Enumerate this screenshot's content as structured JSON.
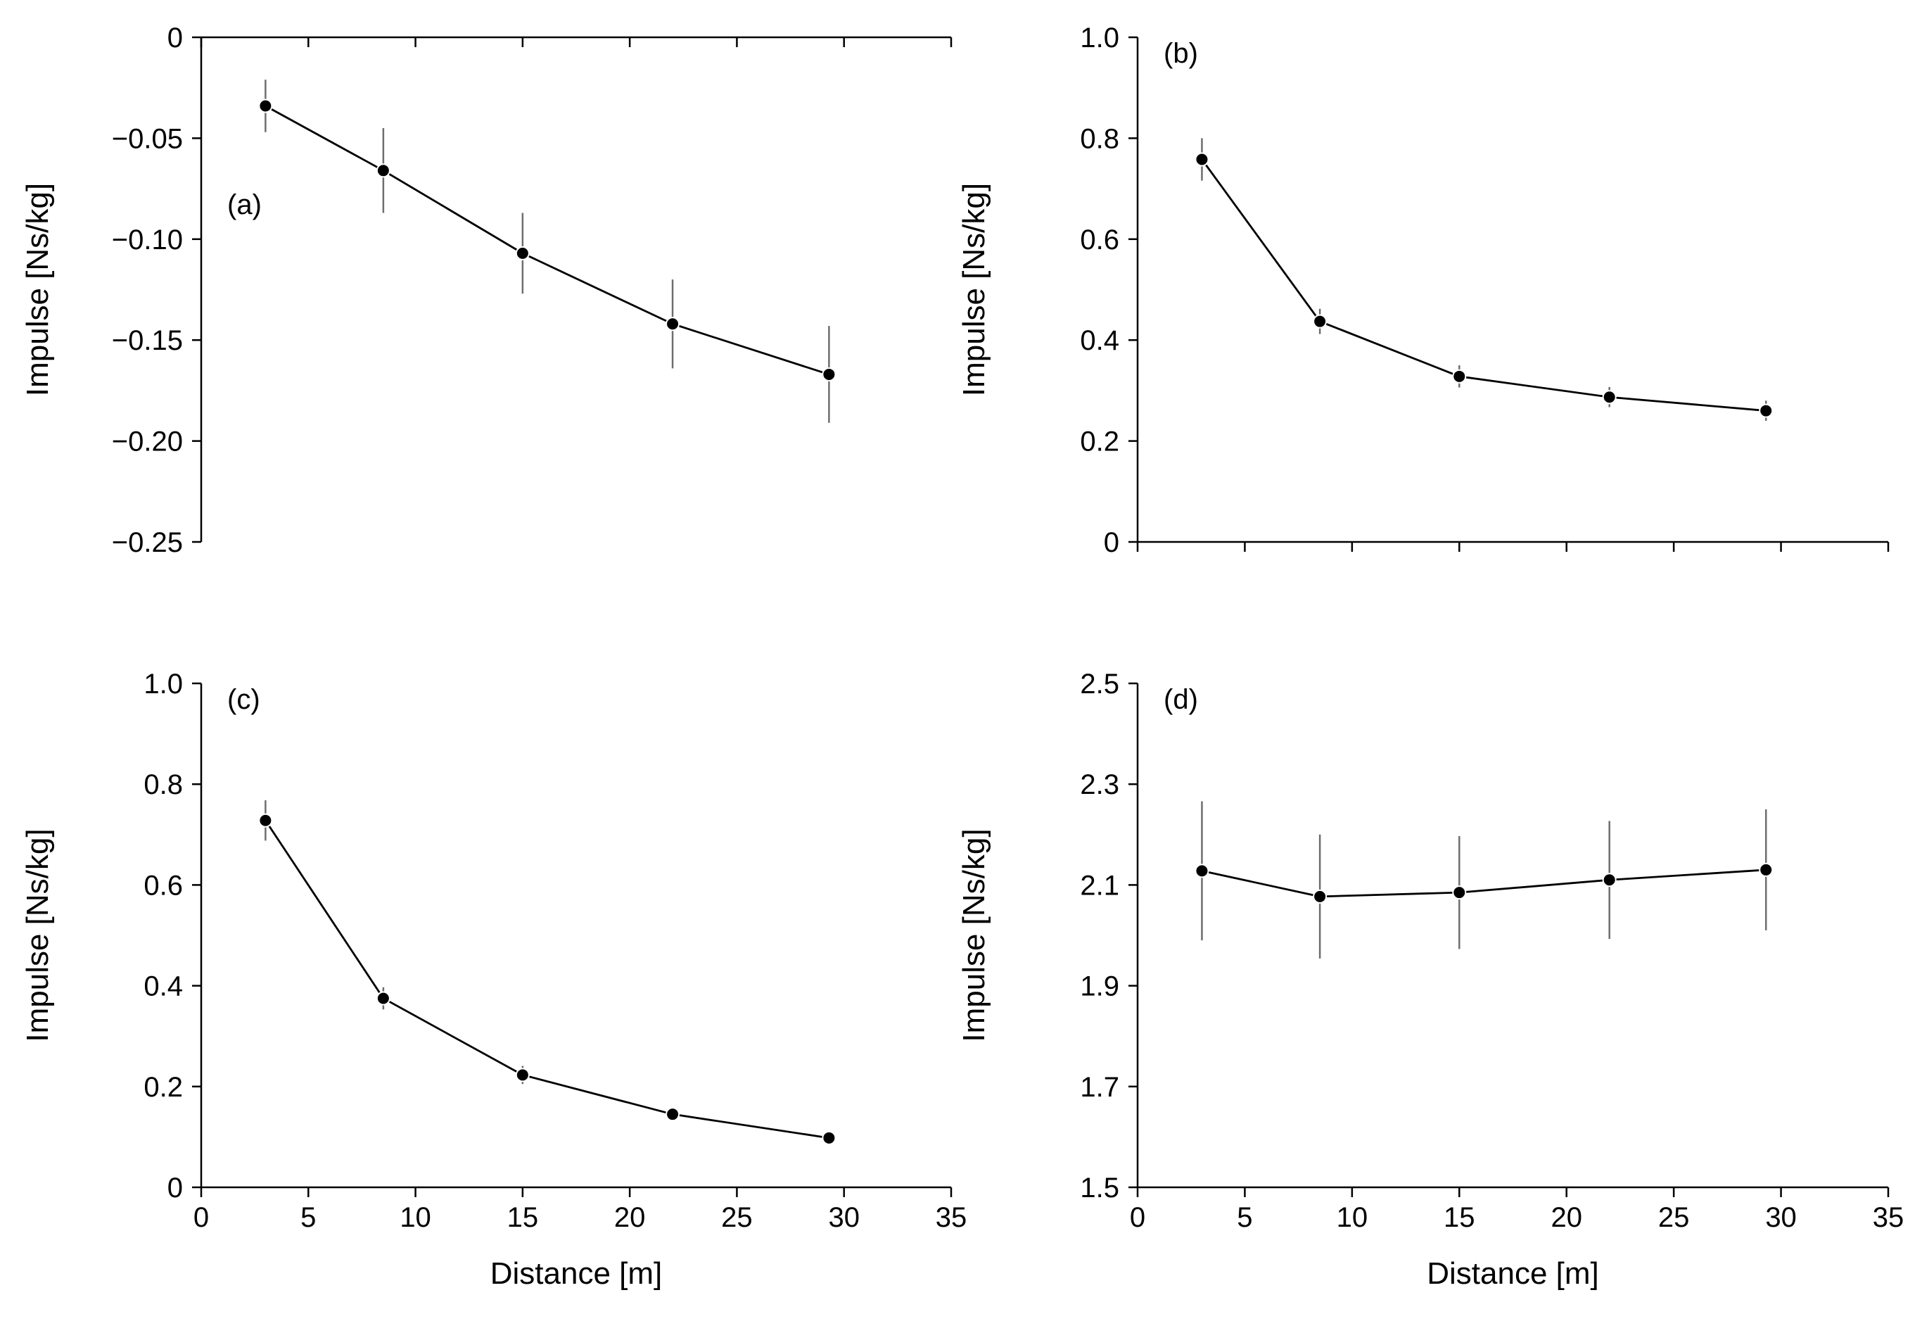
{
  "chart_data": [
    {
      "type": "line",
      "panel_label": "(a)",
      "xlabel": "",
      "ylabel": "Impulse [Ns/kg]",
      "xlim": [
        0,
        35
      ],
      "ylim": [
        -0.25,
        0
      ],
      "xticks": [
        0,
        5,
        10,
        15,
        20,
        25,
        30,
        35
      ],
      "xtick_labels": [],
      "yticks": [
        0,
        -0.05,
        -0.1,
        -0.15,
        -0.2,
        -0.25
      ],
      "ytick_labels": [
        "0",
        "−0.05",
        "−0.10",
        "−0.15",
        "−0.20",
        "−0.25"
      ],
      "x_axis_at": 0,
      "series": [
        {
          "name": "Impulse",
          "x": [
            3,
            8.5,
            15,
            22,
            29.3
          ],
          "y": [
            -0.034,
            -0.066,
            -0.107,
            -0.142,
            -0.167
          ],
          "err": [
            0.013,
            0.021,
            0.02,
            0.022,
            0.024
          ]
        }
      ]
    },
    {
      "type": "line",
      "panel_label": "(b)",
      "xlabel": "",
      "ylabel": "Impulse [Ns/kg]",
      "xlim": [
        0,
        35
      ],
      "ylim": [
        0,
        1.0
      ],
      "xticks": [
        0,
        5,
        10,
        15,
        20,
        25,
        30,
        35
      ],
      "xtick_labels": [],
      "yticks": [
        0,
        0.2,
        0.4,
        0.6,
        0.8,
        1.0
      ],
      "ytick_labels": [
        "0",
        "0.2",
        "0.4",
        "0.6",
        "0.8",
        "1.0"
      ],
      "x_axis_at": 0,
      "series": [
        {
          "name": "Impulse",
          "x": [
            3,
            8.5,
            15,
            22,
            29.3
          ],
          "y": [
            0.758,
            0.437,
            0.328,
            0.287,
            0.26
          ],
          "err": [
            0.042,
            0.025,
            0.022,
            0.02,
            0.02
          ]
        }
      ]
    },
    {
      "type": "line",
      "panel_label": "(c)",
      "xlabel": "Distance [m]",
      "ylabel": "Impulse [Ns/kg]",
      "xlim": [
        0,
        35
      ],
      "ylim": [
        0,
        1.0
      ],
      "xticks": [
        0,
        5,
        10,
        15,
        20,
        25,
        30,
        35
      ],
      "xtick_labels": [
        "0",
        "5",
        "10",
        "15",
        "20",
        "25",
        "30",
        "35"
      ],
      "yticks": [
        0,
        0.2,
        0.4,
        0.6,
        0.8,
        1.0
      ],
      "ytick_labels": [
        "0",
        "0.2",
        "0.4",
        "0.6",
        "0.8",
        "1.0"
      ],
      "x_axis_at": 0,
      "series": [
        {
          "name": "Impulse",
          "x": [
            3,
            8.5,
            15,
            22,
            29.3
          ],
          "y": [
            0.728,
            0.375,
            0.223,
            0.145,
            0.098
          ],
          "err": [
            0.04,
            0.022,
            0.018,
            0.008,
            0.012
          ]
        }
      ]
    },
    {
      "type": "line",
      "panel_label": "(d)",
      "xlabel": "Distance [m]",
      "ylabel": "Impulse [Ns/kg]",
      "xlim": [
        0,
        35
      ],
      "ylim": [
        1.5,
        2.5
      ],
      "xticks": [
        0,
        5,
        10,
        15,
        20,
        25,
        30,
        35
      ],
      "xtick_labels": [
        "0",
        "5",
        "10",
        "15",
        "20",
        "25",
        "30",
        "35"
      ],
      "yticks": [
        1.5,
        1.7,
        1.9,
        2.1,
        2.3,
        2.5
      ],
      "ytick_labels": [
        "1.5",
        "1.7",
        "1.9",
        "2.1",
        "2.3",
        "2.5"
      ],
      "x_axis_at": 1.5,
      "series": [
        {
          "name": "Impulse",
          "x": [
            3,
            8.5,
            15,
            22,
            29.3
          ],
          "y": [
            2.128,
            2.077,
            2.085,
            2.11,
            2.13
          ],
          "err": [
            0.138,
            0.123,
            0.112,
            0.117,
            0.12
          ]
        }
      ]
    }
  ]
}
